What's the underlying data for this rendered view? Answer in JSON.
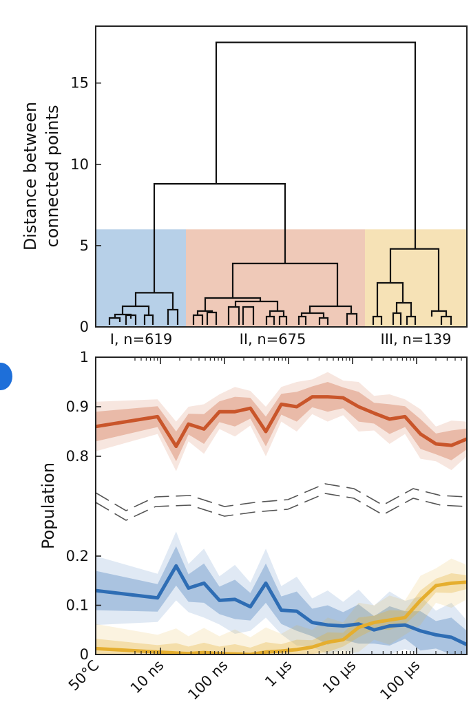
{
  "colors": {
    "blue": "#2e6db4",
    "orange": "#c9552a",
    "yellow": "#e5ae2e",
    "blue_band": "#b7d0e8",
    "orange_band": "#efc9b8",
    "yellow_band": "#f6e2b6",
    "marker": "#1e6fd9"
  },
  "chart_data": [
    {
      "type": "dendrogram",
      "ylabel_lines": [
        "Distance between",
        "connected points"
      ],
      "ylim": [
        0,
        18.5
      ],
      "yticks": [
        0,
        5,
        10,
        15
      ],
      "ytick_labels": [
        "0",
        "5",
        "10",
        "15"
      ],
      "cut_height": 6,
      "clusters": [
        {
          "label": "I, n=619",
          "color": "blue"
        },
        {
          "label": "II, n=675",
          "color": "orange"
        },
        {
          "label": "III, n=139",
          "color": "yellow"
        }
      ],
      "merges": [
        {
          "left": "I",
          "right": "II",
          "height": 8.8
        },
        {
          "left": "I+II",
          "right": "III",
          "height": 17.5
        }
      ],
      "subtree_heights": {
        "I": 2.1,
        "II": 3.9,
        "III": 4.8
      }
    },
    {
      "type": "line",
      "ylabel": "Population",
      "axis_break": true,
      "yticks": [
        0,
        0.1,
        0.2,
        0.8,
        0.9,
        1
      ],
      "ytick_labels": [
        "0",
        "0.1",
        "0.2",
        "0.8",
        "0.9",
        "1"
      ],
      "xscale": "log",
      "xtick_labels": [
        "50°C",
        "10 ns",
        "100 ns",
        "1 µs",
        "10 µs",
        "100 µs"
      ],
      "x": [
        0,
        1.0,
        1.3,
        1.5,
        1.75,
        2.0,
        2.25,
        2.5,
        2.75,
        3.0,
        3.25,
        3.5,
        3.75,
        4.0,
        4.25,
        4.5,
        4.75,
        5.0,
        5.25,
        5.5,
        5.75,
        6.0
      ],
      "series": [
        {
          "color": "orange",
          "values": [
            0.86,
            0.88,
            0.82,
            0.865,
            0.855,
            0.89,
            0.89,
            0.897,
            0.85,
            0.905,
            0.9,
            0.92,
            0.92,
            0.918,
            0.9,
            0.887,
            0.875,
            0.88,
            0.845,
            0.825,
            0.822,
            0.835
          ],
          "band_inner": 0.03,
          "band_outer": 0.05
        },
        {
          "color": "blue",
          "values": [
            0.13,
            0.115,
            0.18,
            0.135,
            0.145,
            0.11,
            0.112,
            0.097,
            0.145,
            0.09,
            0.088,
            0.065,
            0.06,
            0.058,
            0.062,
            0.05,
            0.058,
            0.06,
            0.048,
            0.04,
            0.035,
            0.02
          ],
          "band_inner": 0.04,
          "band_outer": 0.07
        },
        {
          "color": "yellow",
          "values": [
            0.012,
            0.005,
            0.003,
            0.002,
            0.004,
            0.002,
            0.001,
            0.0,
            0.005,
            0.007,
            0.01,
            0.015,
            0.025,
            0.03,
            0.055,
            0.065,
            0.07,
            0.075,
            0.11,
            0.14,
            0.145,
            0.147
          ],
          "band_inner": 0.02,
          "band_outer": 0.05
        }
      ]
    }
  ]
}
